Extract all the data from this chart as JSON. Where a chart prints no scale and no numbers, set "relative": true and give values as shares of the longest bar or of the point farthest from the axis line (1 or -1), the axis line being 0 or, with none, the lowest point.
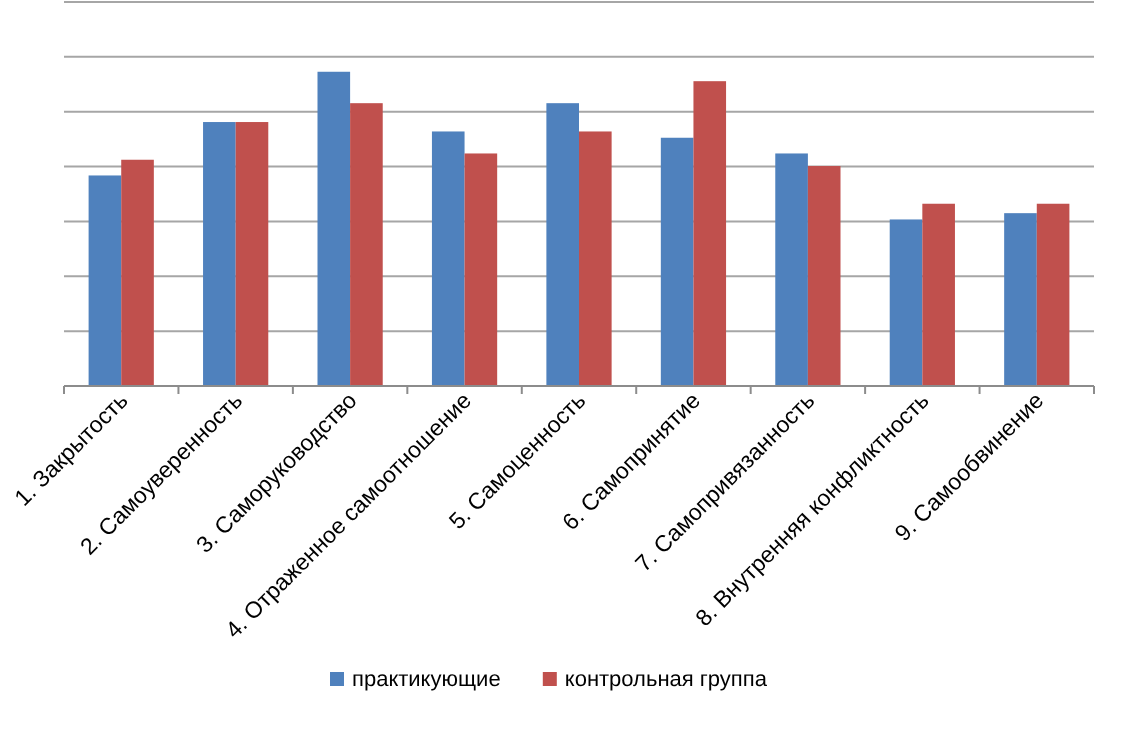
{
  "chart_data": {
    "type": "bar",
    "relative": true,
    "grid": true,
    "legend": "bottom",
    "categories": [
      "1. Закрытость",
      "2. Самоуверенность",
      "3. Саморуководство",
      "4. Отраженное самоотношение",
      "5. Самоценность",
      "6. Самопринятие",
      "7. Самопривязанность",
      "8. Внутренняя конфликтность",
      "9. Самообвинение"
    ],
    "series": [
      {
        "name": "практикующие",
        "color": "#4f81bd",
        "values": [
          0.67,
          0.84,
          1,
          0.81,
          0.9,
          0.79,
          0.74,
          0.53,
          0.55
        ]
      },
      {
        "name": "контрольная группа",
        "color": "#c0504d",
        "values": [
          0.72,
          0.84,
          0.9,
          0.74,
          0.81,
          0.97,
          0.7,
          0.58,
          0.58
        ]
      }
    ]
  }
}
